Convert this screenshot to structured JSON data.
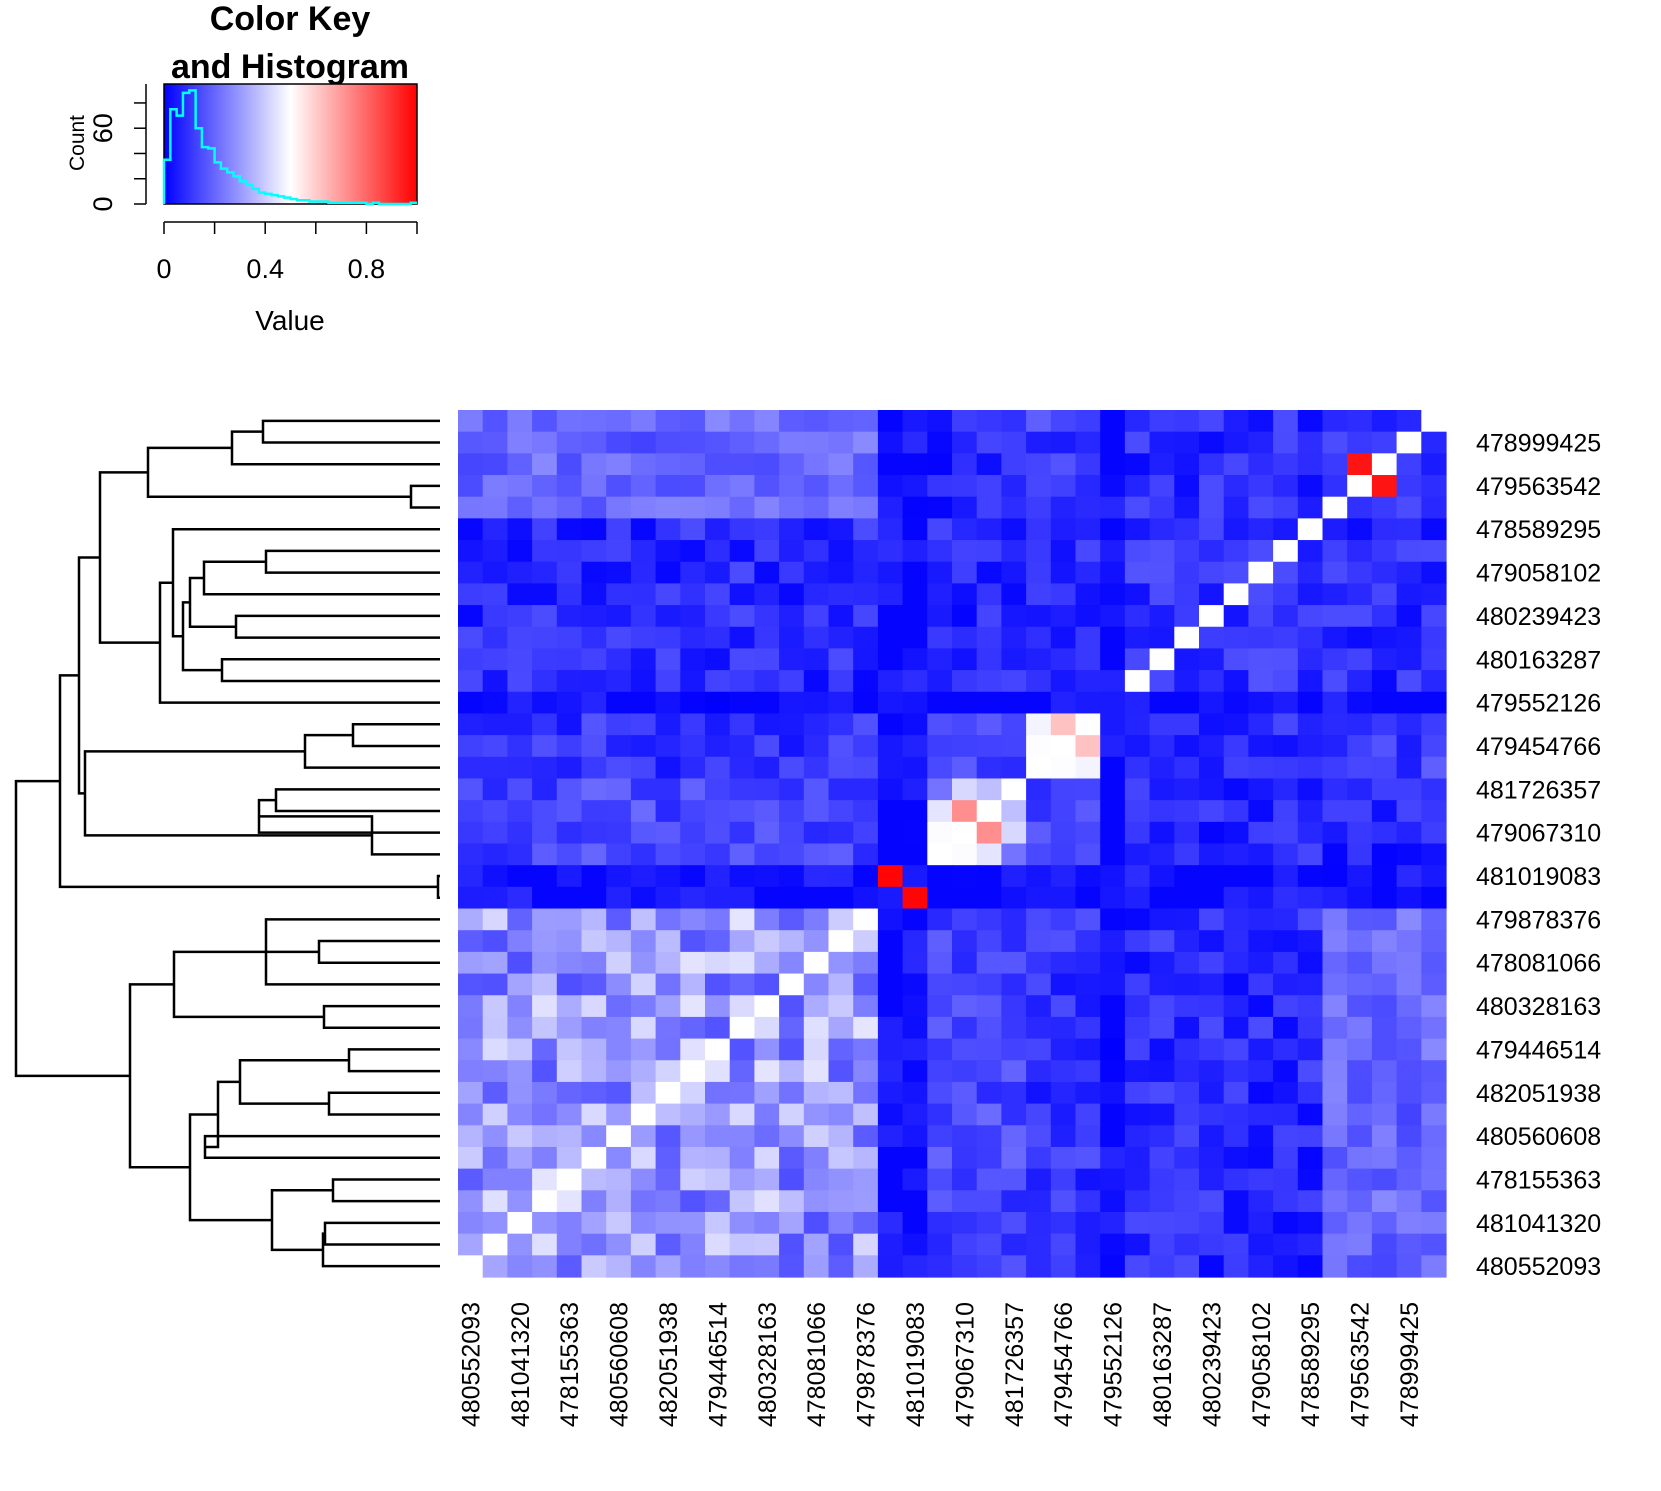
{
  "chart_data": {
    "type": "heatmap",
    "color_key": {
      "title_line1": "Color Key",
      "title_line2": "and Histogram",
      "xlabel": "Value",
      "ylabel": "Count",
      "x_ticks": [
        0,
        0.2,
        0.4,
        0.6,
        0.8,
        1.0
      ],
      "x_tick_labels": [
        "0",
        "0.4",
        "0.8"
      ],
      "x_tick_label_values": [
        0,
        0.4,
        0.8
      ],
      "y_tick_labels": [
        "0",
        "60"
      ],
      "y_tick_label_values": [
        0,
        60
      ],
      "y_max": 95,
      "colors": {
        "low": "#0000FF",
        "mid": "#FFFFFF",
        "high": "#FF0000"
      },
      "hist_color": "#00FFFF",
      "hist_values": [
        35,
        75,
        70,
        88,
        90,
        60,
        45,
        44,
        33,
        28,
        25,
        22,
        18,
        15,
        12,
        9,
        8,
        7,
        6,
        5,
        4,
        3,
        3,
        2,
        2,
        2,
        1,
        1,
        1,
        1,
        1,
        1,
        0,
        1,
        0,
        0,
        0,
        0,
        0,
        1
      ]
    },
    "row_labels": [
      "478999425",
      "479563542",
      "478589295",
      "479058102",
      "480239423",
      "480163287",
      "479552126",
      "479454766",
      "481726357",
      "479067310",
      "481019083",
      "479878376",
      "478081066",
      "480328163",
      "479446514",
      "482051938",
      "480560608",
      "478155363",
      "481041320",
      "480552093"
    ],
    "col_labels": [
      "480552093",
      "481041320",
      "478155363",
      "480560608",
      "482051938",
      "479446514",
      "480328163",
      "478081066",
      "479878376",
      "481019083",
      "479067310",
      "481726357",
      "479454766",
      "479552126",
      "480163287",
      "480239423",
      "479058102",
      "478589295",
      "479563542",
      "478999425"
    ],
    "n_rows": 40,
    "n_cols": 40,
    "value_range": [
      0,
      1
    ]
  }
}
